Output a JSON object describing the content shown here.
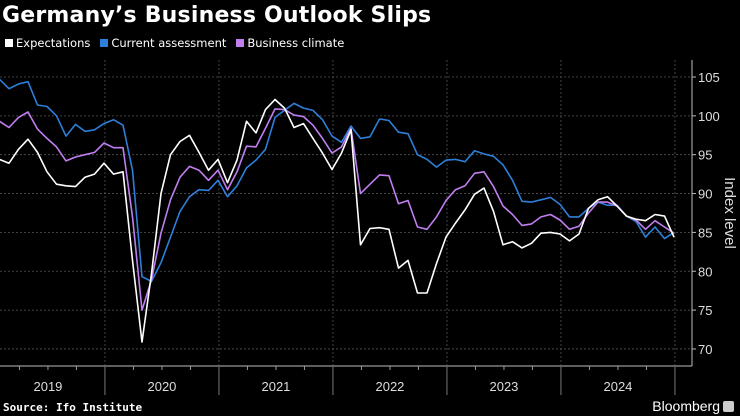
{
  "chart_data": {
    "type": "line",
    "title": "Germany’s Business Outlook Slips",
    "ylabel": "Index level",
    "xlabel": "",
    "ylim": [
      69,
      107
    ],
    "yticks": [
      70,
      75,
      80,
      85,
      90,
      95,
      100,
      105
    ],
    "xtick_labels": [
      "2019",
      "2020",
      "2021",
      "2022",
      "2023",
      "2024"
    ],
    "x_start": "2019-01",
    "x_end": "2024-12",
    "frequency": "monthly",
    "grid": true,
    "legend_position": "top-left",
    "series": [
      {
        "name": "Expectations",
        "color": "#ffffff",
        "values": [
          94.4,
          93.9,
          95.7,
          97.0,
          95.3,
          92.8,
          91.2,
          91.0,
          90.9,
          92.1,
          92.5,
          93.9,
          92.5,
          92.8,
          81.4,
          70.9,
          79.7,
          90.0,
          95.0,
          96.7,
          97.5,
          95.3,
          93.0,
          94.4,
          91.4,
          94.3,
          99.3,
          97.8,
          100.8,
          102.1,
          101.0,
          98.5,
          99.0,
          97.1,
          95.2,
          93.1,
          95.2,
          98.2,
          83.4,
          85.5,
          85.6,
          85.4,
          80.4,
          81.4,
          77.2,
          77.2,
          81.0,
          84.4,
          86.2,
          87.9,
          89.9,
          90.7,
          87.7,
          83.4,
          83.8,
          83.0,
          83.6,
          84.9,
          85.0,
          84.8,
          83.9,
          84.8,
          88.1,
          89.2,
          89.6,
          88.4,
          87.1,
          86.7,
          86.5,
          87.3,
          87.1,
          84.4
        ]
      },
      {
        "name": "Current assessment",
        "color": "#2e7fd9",
        "values": [
          104.7,
          103.5,
          104.1,
          104.4,
          101.4,
          101.2,
          100.0,
          97.4,
          98.9,
          98.0,
          98.2,
          99.0,
          99.5,
          98.8,
          93.0,
          79.3,
          78.7,
          81.1,
          84.4,
          87.7,
          89.6,
          90.5,
          90.4,
          91.7,
          89.6,
          91.0,
          93.3,
          94.3,
          95.7,
          99.8,
          100.7,
          101.6,
          101.0,
          100.7,
          99.5,
          97.4,
          96.6,
          98.7,
          97.1,
          97.3,
          99.6,
          99.4,
          97.9,
          97.7,
          95.0,
          94.4,
          93.4,
          94.3,
          94.4,
          94.1,
          95.5,
          95.1,
          94.8,
          93.7,
          91.7,
          89.0,
          88.9,
          89.2,
          89.5,
          88.6,
          87.0,
          87.0,
          88.1,
          88.9,
          88.5,
          88.5,
          87.1,
          86.4,
          84.4,
          85.7,
          84.2,
          85.0
        ]
      },
      {
        "name": "Business climate",
        "color": "#c17ef0",
        "values": [
          99.3,
          98.5,
          99.8,
          100.5,
          98.3,
          97.1,
          96.0,
          94.2,
          94.7,
          95.0,
          95.3,
          96.5,
          95.9,
          95.9,
          87.0,
          75.0,
          78.9,
          84.9,
          89.2,
          92.1,
          93.5,
          93.0,
          91.7,
          93.0,
          90.5,
          92.8,
          96.1,
          96.0,
          98.4,
          100.9,
          100.8,
          100.1,
          99.9,
          98.8,
          97.1,
          95.2,
          96.0,
          98.4,
          90.0,
          91.2,
          92.4,
          92.3,
          88.7,
          89.1,
          85.7,
          85.4,
          87.0,
          89.1,
          90.5,
          91.0,
          92.6,
          92.8,
          90.9,
          88.4,
          87.3,
          85.9,
          86.1,
          87.0,
          87.3,
          86.6,
          85.4,
          85.8,
          87.5,
          88.9,
          88.9,
          88.4,
          87.1,
          86.6,
          85.4,
          86.5,
          85.7,
          84.9
        ]
      }
    ]
  },
  "footer": {
    "source": "Source: Ifo Institute",
    "brand": "Bloomberg"
  }
}
